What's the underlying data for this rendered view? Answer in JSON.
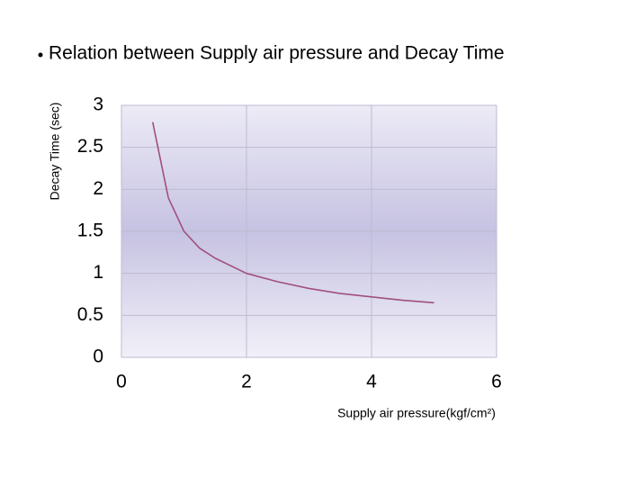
{
  "chart_data": {
    "type": "line",
    "title": "Relation between Supply air pressure and Decay Time",
    "x_label": "Supply air pressure(kgf/cm²)",
    "y_label": "Decay Time (sec)",
    "x": [
      0.5,
      0.75,
      1,
      1.25,
      1.5,
      2,
      2.5,
      3,
      3.5,
      4,
      4.5,
      5
    ],
    "series": [
      {
        "name": "Decay Time",
        "color": "#a0507e",
        "values": [
          2.8,
          1.9,
          1.5,
          1.3,
          1.18,
          1.0,
          0.9,
          0.82,
          0.76,
          0.72,
          0.68,
          0.65
        ]
      }
    ],
    "xlim": [
      0,
      6
    ],
    "xticks": [
      0,
      2,
      4,
      6
    ],
    "ylim": [
      0,
      3
    ],
    "yticks": [
      0,
      0.5,
      1,
      1.5,
      2,
      2.5,
      3
    ],
    "grid": true
  }
}
